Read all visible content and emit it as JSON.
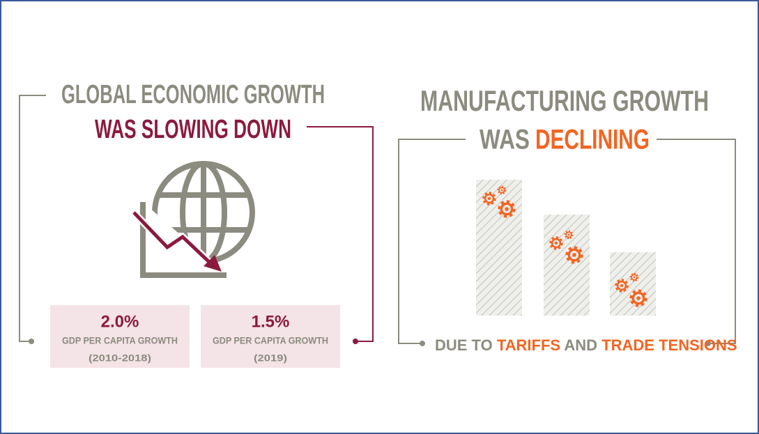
{
  "left": {
    "title_line1": "GLOBAL ECONOMIC GROWTH",
    "title_line2": "WAS SLOWING DOWN",
    "stats": [
      {
        "value": "2.0%",
        "label": "GDP PER CAPITA GROWTH",
        "period": "(2010-2018)"
      },
      {
        "value": "1.5%",
        "label": "GDP PER CAPITA GROWTH",
        "period": "(2019)"
      }
    ]
  },
  "right": {
    "title_line1": "MANUFACTURING GROWTH",
    "title_line2_a": "WAS",
    "title_line2_b": "DECLINING",
    "footer": [
      "DUE TO",
      "TARIFFS",
      "AND",
      "TRADE TENSIONS"
    ]
  }
}
